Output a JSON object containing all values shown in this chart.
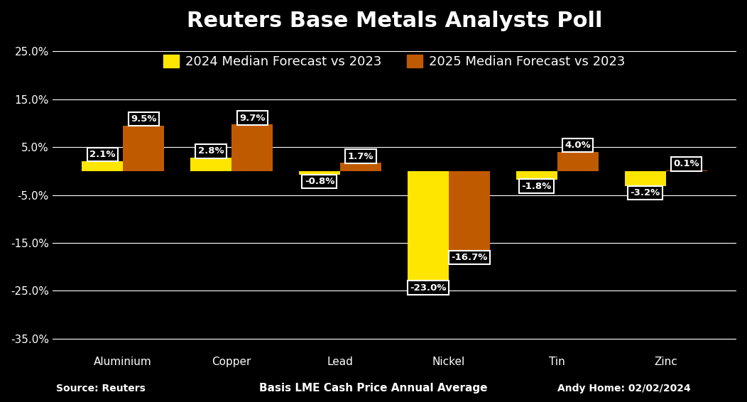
{
  "title": "Reuters Base Metals Analysts Poll",
  "categories": [
    "Aluminium",
    "Copper",
    "Lead",
    "Nickel",
    "Tin",
    "Zinc"
  ],
  "series_2024": [
    2.1,
    2.8,
    -0.8,
    -23.0,
    -1.8,
    -3.2
  ],
  "series_2025": [
    9.5,
    9.7,
    1.7,
    -16.7,
    4.0,
    0.1
  ],
  "color_2024": "#FFE600",
  "color_2025": "#C05A00",
  "background_color": "#000000",
  "text_color": "#FFFFFF",
  "grid_color": "#FFFFFF",
  "legend_2024": "2024 Median Forecast vs 2023",
  "legend_2025": "2025 Median Forecast vs 2023",
  "ylabel_ticks": [
    25.0,
    15.0,
    5.0,
    -5.0,
    -15.0,
    -25.0,
    -35.0
  ],
  "ylim": [
    -38,
    28
  ],
  "xlabel": "Basis LME Cash Price Annual Average",
  "source_text": "Source: Reuters",
  "author_text": "Andy Home: 02/02/2024",
  "label_fontsize": 9.5,
  "title_fontsize": 22,
  "tick_fontsize": 11,
  "legend_fontsize": 13,
  "footer_fontsize": 10,
  "bar_width": 0.38,
  "annotation_box_color": "#000000",
  "annotation_box_edge": "#FFFFFF"
}
